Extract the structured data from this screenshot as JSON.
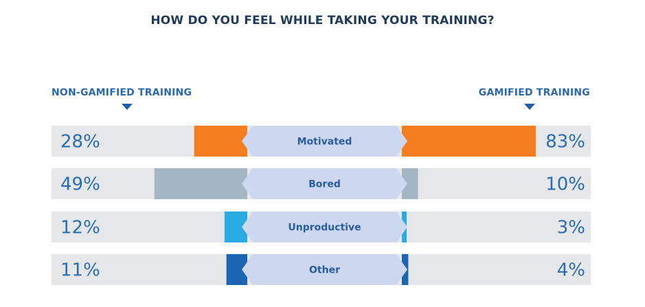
{
  "chart_data": {
    "type": "bar",
    "title": "HOW DO YOU FEEL WHILE TAKING YOUR TRAINING?",
    "left_label": "NON-GAMIFIED TRAINING",
    "right_label": "GAMIFIED TRAINING",
    "categories": [
      "Motivated",
      "Bored",
      "Unproductive",
      "Other"
    ],
    "series": [
      {
        "name": "NON-GAMIFIED TRAINING",
        "values": [
          28,
          49,
          12,
          11
        ],
        "labels": [
          "28%",
          "49%",
          "12%",
          "11%"
        ]
      },
      {
        "name": "GAMIFIED TRAINING",
        "values": [
          83,
          10,
          3,
          4
        ],
        "labels": [
          "83%",
          "10%",
          "3%",
          "4%"
        ]
      }
    ],
    "colors": [
      "#f47d20",
      "#a4b5c3",
      "#29abe2",
      "#1b65b3"
    ],
    "center_color": "#cdd7ef",
    "track_color": "#e6e7e9",
    "legend": "top"
  }
}
